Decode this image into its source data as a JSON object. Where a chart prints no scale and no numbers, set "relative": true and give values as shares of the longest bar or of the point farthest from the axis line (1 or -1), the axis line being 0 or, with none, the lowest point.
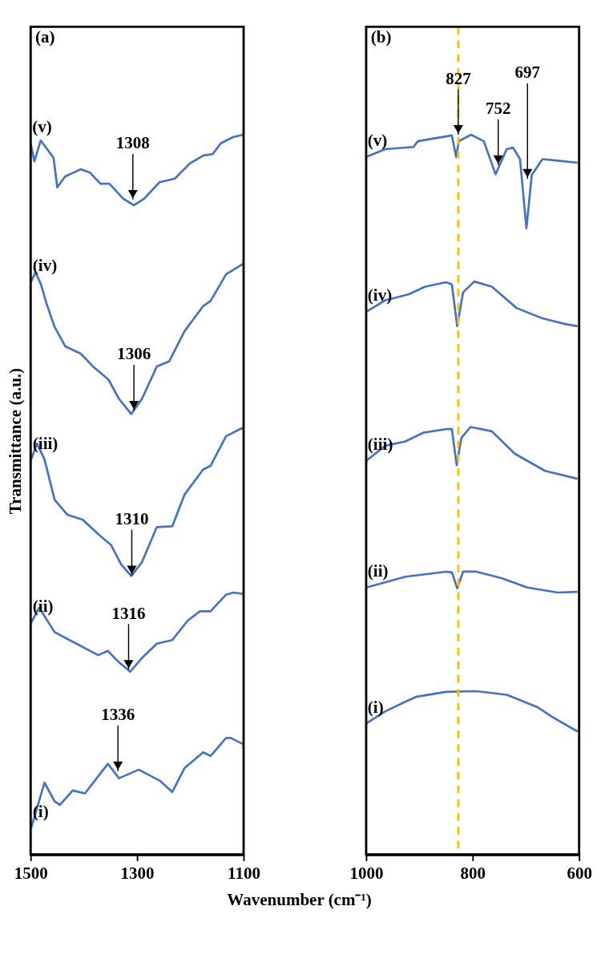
{
  "chart_data": [
    {
      "type": "line",
      "title": "(a)",
      "xlabel": "Wavenumber (cm⁻¹)",
      "ylabel": "Transmittance (a.u.)",
      "relative": true,
      "xlim": [
        1500,
        1100
      ],
      "xticks": [
        1500,
        1300,
        1100
      ],
      "series": [
        {
          "name": "(v)",
          "color": "#4472c4",
          "x": [
            1500,
            1493,
            1481,
            1457,
            1450,
            1435,
            1406,
            1388,
            1369,
            1352,
            1326,
            1306,
            1287,
            1258,
            1229,
            1201,
            1176,
            1158,
            1143,
            1119,
            1100
          ],
          "values": [
            0.988,
            0.963,
            0.992,
            0.968,
            0.927,
            0.942,
            0.952,
            0.947,
            0.932,
            0.932,
            0.911,
            0.902,
            0.911,
            0.934,
            0.939,
            0.96,
            0.971,
            0.973,
            0.988,
            0.997,
            1.0
          ]
        },
        {
          "name": "(iv)",
          "color": "#4472c4",
          "x": [
            1499,
            1491,
            1481,
            1470,
            1455,
            1435,
            1406,
            1383,
            1354,
            1334,
            1311,
            1291,
            1263,
            1240,
            1211,
            1176,
            1162,
            1133,
            1100
          ],
          "values": [
            0.796,
            0.809,
            0.793,
            0.765,
            0.733,
            0.706,
            0.696,
            0.678,
            0.66,
            0.633,
            0.612,
            0.633,
            0.678,
            0.685,
            0.727,
            0.762,
            0.769,
            0.806,
            0.821
          ]
        },
        {
          "name": "(iii)",
          "color": "#4472c4",
          "x": [
            1499,
            1488,
            1474,
            1455,
            1431,
            1402,
            1373,
            1349,
            1330,
            1311,
            1291,
            1263,
            1234,
            1211,
            1176,
            1162,
            1133,
            1104,
            1100
          ],
          "values": [
            0.549,
            0.571,
            0.549,
            0.493,
            0.472,
            0.465,
            0.445,
            0.43,
            0.403,
            0.387,
            0.406,
            0.455,
            0.456,
            0.5,
            0.535,
            0.54,
            0.581,
            0.592,
            0.591
          ]
        },
        {
          "name": "(ii)",
          "color": "#4472c4",
          "x": [
            1499,
            1484,
            1455,
            1427,
            1373,
            1355,
            1334,
            1313,
            1291,
            1263,
            1234,
            1205,
            1182,
            1162,
            1133,
            1119,
            1100
          ],
          "values": [
            0.322,
            0.343,
            0.309,
            0.298,
            0.277,
            0.283,
            0.267,
            0.254,
            0.273,
            0.293,
            0.298,
            0.325,
            0.338,
            0.338,
            0.361,
            0.364,
            0.362
          ]
        },
        {
          "name": "(i)",
          "color": "#4472c4",
          "x": [
            1499,
            1474,
            1455,
            1445,
            1421,
            1398,
            1355,
            1334,
            1297,
            1258,
            1234,
            1211,
            1176,
            1162,
            1133,
            1124,
            1100
          ],
          "values": [
            0.037,
            0.1,
            0.074,
            0.069,
            0.089,
            0.085,
            0.126,
            0.106,
            0.118,
            0.103,
            0.087,
            0.12,
            0.142,
            0.137,
            0.162,
            0.162,
            0.153
          ]
        }
      ],
      "annotations": [
        {
          "text": "1308",
          "x": 1308,
          "y": 0.91
        },
        {
          "text": "1306",
          "x": 1306,
          "y": 0.617
        },
        {
          "text": "1310",
          "x": 1310,
          "y": 0.388
        },
        {
          "text": "1316",
          "x": 1316,
          "y": 0.257
        },
        {
          "text": "1336",
          "x": 1336,
          "y": 0.116
        }
      ]
    },
    {
      "type": "line",
      "title": "(b)",
      "relative": true,
      "xlim": [
        1000,
        600
      ],
      "xticks": [
        1000,
        800,
        600
      ],
      "series": [
        {
          "name": "(v)",
          "color": "#4472c4",
          "x": [
            1000,
            964,
            911,
            903,
            879,
            839,
            831,
            826,
            803,
            779,
            757,
            736,
            724,
            711,
            699,
            689,
            669,
            640,
            603
          ],
          "values": [
            0.969,
            0.98,
            0.983,
            0.991,
            0.994,
            0.999,
            0.969,
            0.991,
            1.0,
            0.991,
            0.945,
            0.98,
            0.982,
            0.966,
            0.87,
            0.944,
            0.966,
            0.964,
            0.961
          ]
        },
        {
          "name": "(iv)",
          "color": "#4472c4",
          "x": [
            1000,
            964,
            921,
            889,
            850,
            839,
            829,
            818,
            797,
            764,
            717,
            669,
            626,
            603
          ],
          "values": [
            0.754,
            0.77,
            0.778,
            0.789,
            0.795,
            0.792,
            0.734,
            0.781,
            0.796,
            0.789,
            0.759,
            0.745,
            0.737,
            0.734
          ]
        },
        {
          "name": "(iii)",
          "color": "#4472c4",
          "x": [
            1000,
            964,
            926,
            893,
            850,
            839,
            830,
            821,
            804,
            764,
            721,
            664,
            603
          ],
          "values": [
            0.547,
            0.568,
            0.574,
            0.586,
            0.591,
            0.591,
            0.541,
            0.579,
            0.594,
            0.588,
            0.557,
            0.533,
            0.522
          ]
        },
        {
          "name": "(ii)",
          "color": "#4472c4",
          "x": [
            1000,
            926,
            850,
            839,
            829,
            818,
            793,
            746,
            697,
            640,
            603
          ],
          "values": [
            0.371,
            0.386,
            0.393,
            0.392,
            0.37,
            0.393,
            0.393,
            0.384,
            0.371,
            0.364,
            0.365
          ]
        },
        {
          "name": "(i)",
          "color": "#4472c4",
          "x": [
            1000,
            964,
            907,
            850,
            793,
            736,
            679,
            650,
            603
          ],
          "values": [
            0.182,
            0.199,
            0.219,
            0.226,
            0.227,
            0.222,
            0.205,
            0.191,
            0.171
          ]
        }
      ],
      "ref_lines": [
        {
          "axis": "x",
          "value": 827,
          "color": "#ffc000",
          "line_style": "dashed"
        }
      ],
      "annotations": [
        {
          "text": "827",
          "x": 827,
          "y": 1.0
        },
        {
          "text": "752",
          "x": 752,
          "y": 0.958
        },
        {
          "text": "697",
          "x": 697,
          "y": 0.939
        }
      ]
    }
  ]
}
